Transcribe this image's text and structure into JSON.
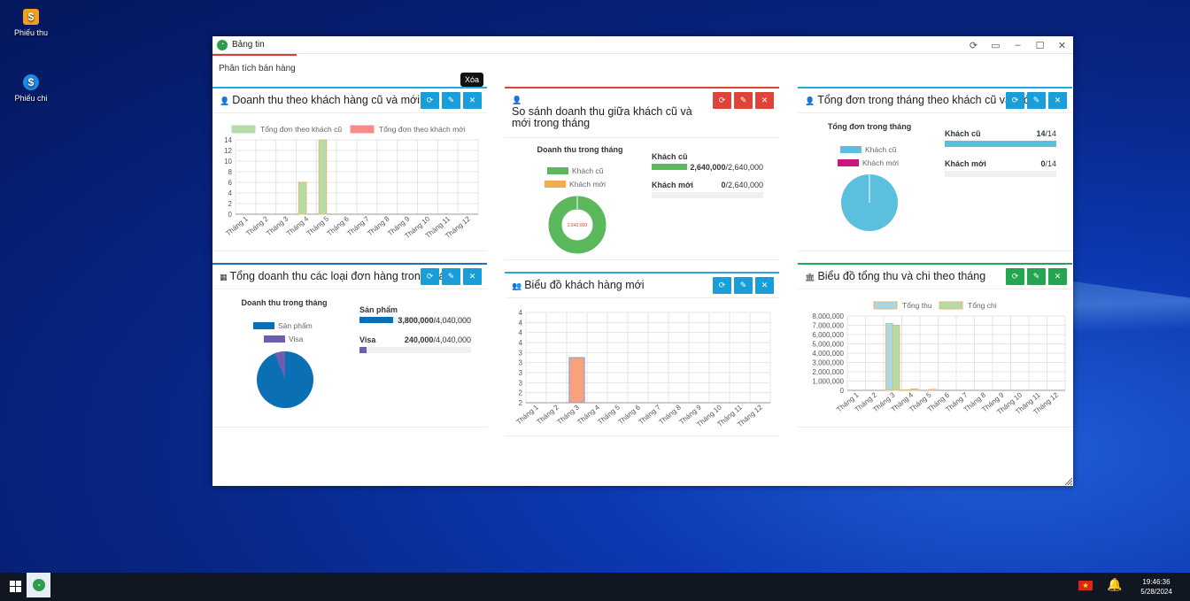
{
  "desktop": {
    "icons": [
      {
        "label": "Phiếu thu"
      },
      {
        "label": "Phiếu chi"
      }
    ]
  },
  "window": {
    "title": "Bảng tin",
    "subtab": "Phân tích bán hàng",
    "tooltip": "Xóa"
  },
  "months": [
    "Tháng 1",
    "Tháng 2",
    "Tháng 3",
    "Tháng 4",
    "Tháng 5",
    "Tháng 6",
    "Tháng 7",
    "Tháng 8",
    "Tháng 9",
    "Tháng 10",
    "Tháng 11",
    "Tháng 12"
  ],
  "panels": {
    "p1": {
      "title": "Doanh thu theo khách hàng cũ và mới"
    },
    "p2": {
      "title": "So sánh doanh thu giữa khách cũ và mới trong tháng"
    },
    "p3": {
      "title": "Tổng đơn trong tháng theo khách cũ và mới"
    },
    "p4": {
      "title": "Tổng doanh thu các loại đơn hàng trong tháng"
    },
    "p5": {
      "title": "Biểu đồ khách hàng mới"
    },
    "p6": {
      "title": "Biểu đồ tổng thu và chi theo tháng"
    }
  },
  "chart_data": [
    {
      "type": "bar",
      "categories": [
        "Tháng 1",
        "Tháng 2",
        "Tháng 3",
        "Tháng 4",
        "Tháng 5",
        "Tháng 6",
        "Tháng 7",
        "Tháng 8",
        "Tháng 9",
        "Tháng 10",
        "Tháng 11",
        "Tháng 12"
      ],
      "series": [
        {
          "name": "Tổng đơn theo khách cũ",
          "values": [
            0,
            0,
            0,
            6,
            14,
            0,
            0,
            0,
            0,
            0,
            0,
            0
          ],
          "color": "#b5dca8"
        },
        {
          "name": "Tổng đơn theo khách mới",
          "values": [
            0,
            0,
            0,
            0,
            0,
            0,
            0,
            0,
            0,
            0,
            0,
            0
          ],
          "color": "#f98b8b"
        }
      ],
      "yticks": [
        "0",
        "2",
        "4",
        "6",
        "8",
        "10",
        "12",
        "14"
      ],
      "ylim": [
        0,
        14
      ]
    },
    {
      "type": "pie",
      "title": "Doanh thu trong tháng",
      "labels": [
        "Khách cũ",
        "Khách mới"
      ],
      "values": [
        2640000,
        0
      ],
      "colors": [
        "#5cb85c",
        "#f0ad4e"
      ],
      "center_label": "2,640,000",
      "rows": [
        {
          "name": "Khách cũ",
          "value": "2,640,000",
          "total": "/2,640,000",
          "fraction": 1
        },
        {
          "name": "Khách mới",
          "value": "0",
          "total": "/2,640,000",
          "fraction": 0
        }
      ]
    },
    {
      "type": "pie",
      "title": "Tổng đơn trong tháng",
      "labels": [
        "Khách cũ",
        "Khách mới"
      ],
      "values": [
        14,
        0
      ],
      "colors": [
        "#5bc0de",
        "#c9177e"
      ],
      "rows": [
        {
          "name": "Khách cũ",
          "value": "14",
          "total": "/14",
          "fraction": 1
        },
        {
          "name": "Khách mới",
          "value": "0",
          "total": "/14",
          "fraction": 0
        }
      ]
    },
    {
      "type": "pie",
      "title": "Doanh thu trong tháng",
      "labels": [
        "Sản phẩm",
        "Visa"
      ],
      "values": [
        3800000,
        240000
      ],
      "colors": [
        "#0b6fb6",
        "#6f5dae"
      ],
      "rows": [
        {
          "name": "Sản phẩm",
          "value": "3,800,000",
          "total": "/4,040,000",
          "fraction": 0.94
        },
        {
          "name": "Visa",
          "value": "240,000",
          "total": "/4,040,000",
          "fraction": 0.06
        }
      ]
    },
    {
      "type": "bar",
      "categories": [
        "Tháng 1",
        "Tháng 2",
        "Tháng 3",
        "Tháng 4",
        "Tháng 5",
        "Tháng 6",
        "Tháng 7",
        "Tháng 8",
        "Tháng 9",
        "Tháng 10",
        "Tháng 11",
        "Tháng 12"
      ],
      "series": [
        {
          "values": [
            0,
            0,
            3,
            0,
            0,
            0,
            0,
            0,
            0,
            0,
            0,
            0
          ],
          "color": "#f9a07c"
        }
      ],
      "yticks": [
        "2",
        "2",
        "3",
        "3",
        "3",
        "3",
        "4",
        "4",
        "4",
        "4"
      ],
      "ylim": [
        2,
        4
      ]
    },
    {
      "type": "bar",
      "categories": [
        "Tháng 1",
        "Tháng 2",
        "Tháng 3",
        "Tháng 4",
        "Tháng 5",
        "Tháng 6",
        "Tháng 7",
        "Tháng 8",
        "Tháng 9",
        "Tháng 10",
        "Tháng 11",
        "Tháng 12"
      ],
      "series": [
        {
          "name": "Tổng thu",
          "values": [
            0,
            0,
            7200000,
            50000,
            0,
            0,
            0,
            0,
            0,
            0,
            0,
            0
          ],
          "color": "#a8d6ea"
        },
        {
          "name": "Tổng chi",
          "values": [
            0,
            0,
            7000000,
            150000,
            100000,
            0,
            0,
            0,
            0,
            0,
            0,
            0
          ],
          "color": "#b5dca8"
        }
      ],
      "yticks": [
        "0",
        "1,000,000",
        "2,000,000",
        "3,000,000",
        "4,000,000",
        "5,000,000",
        "6,000,000",
        "7,000,000",
        "8,000,000"
      ],
      "ylim": [
        0,
        8000000
      ]
    }
  ],
  "taskbar": {
    "time": "19:46:36",
    "date": "5/28/2024"
  }
}
